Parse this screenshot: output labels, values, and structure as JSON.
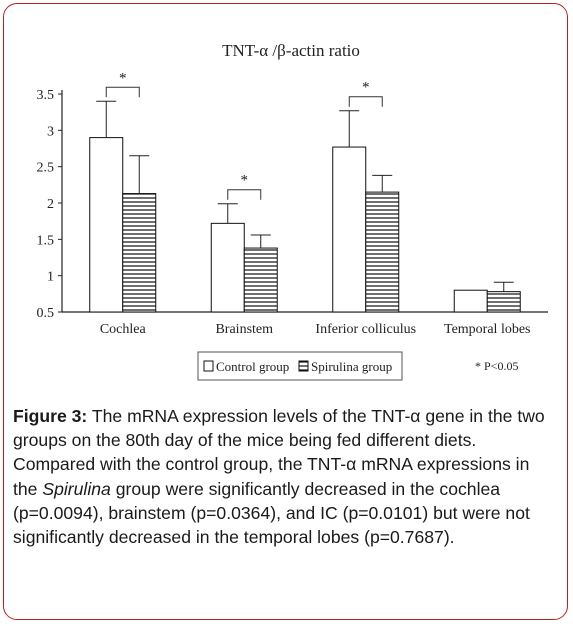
{
  "chart_data": {
    "type": "bar",
    "title": "TNT-α /β-actin ratio",
    "categories": [
      "Cochlea",
      "Brainstem",
      "Inferior colliculus",
      "Temporal lobes"
    ],
    "series": [
      {
        "name": "Control group",
        "values": [
          2.9,
          1.72,
          2.77,
          0.8
        ],
        "error": [
          0.5,
          0.27,
          0.5,
          0.0
        ]
      },
      {
        "name": "Spirulina group",
        "values": [
          2.13,
          1.38,
          2.15,
          0.78
        ],
        "error": [
          0.52,
          0.18,
          0.23,
          0.13
        ]
      }
    ],
    "ylim": [
      0.5,
      3.5
    ],
    "yticks": [
      "0.5",
      "1",
      "1.5",
      "2",
      "2.5",
      "3",
      "3.5"
    ],
    "ytick_values": [
      0.5,
      1,
      1.5,
      2,
      2.5,
      3,
      3.5
    ],
    "significance": [
      "*",
      "*",
      "*",
      ""
    ],
    "legend_note": "* P<0.05",
    "legend_position": "bottom"
  },
  "caption": {
    "label": "Figure 3:",
    "text_1": " The mRNA expression levels of the TNT-α gene in the two groups on the 80th day of the mice being fed different diets. Compared with the control group, the TNT-α mRNA expressions in the ",
    "italic": "Spirulina",
    "text_2": " group were significantly decreased in the cochlea (p=0.0094), brainstem (p=0.0364), and IC (p=0.0101) but were not significantly decreased in the temporal lobes (p=0.7687)."
  }
}
